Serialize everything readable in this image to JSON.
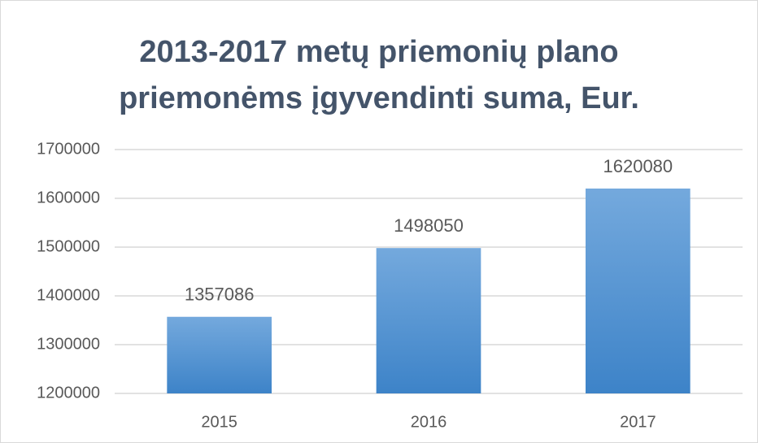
{
  "chart_data": {
    "type": "bar",
    "title": "2013-2017 metų priemonių plano priemonėms įgyvendinti suma, Eur.",
    "categories": [
      "2015",
      "2016",
      "2017"
    ],
    "values": [
      1357086,
      1498050,
      1620080
    ],
    "color": "#5b9bd5",
    "ylim": [
      1200000,
      1700000
    ],
    "yticks": [
      1200000,
      1300000,
      1400000,
      1500000,
      1600000,
      1700000
    ],
    "grid": true
  }
}
